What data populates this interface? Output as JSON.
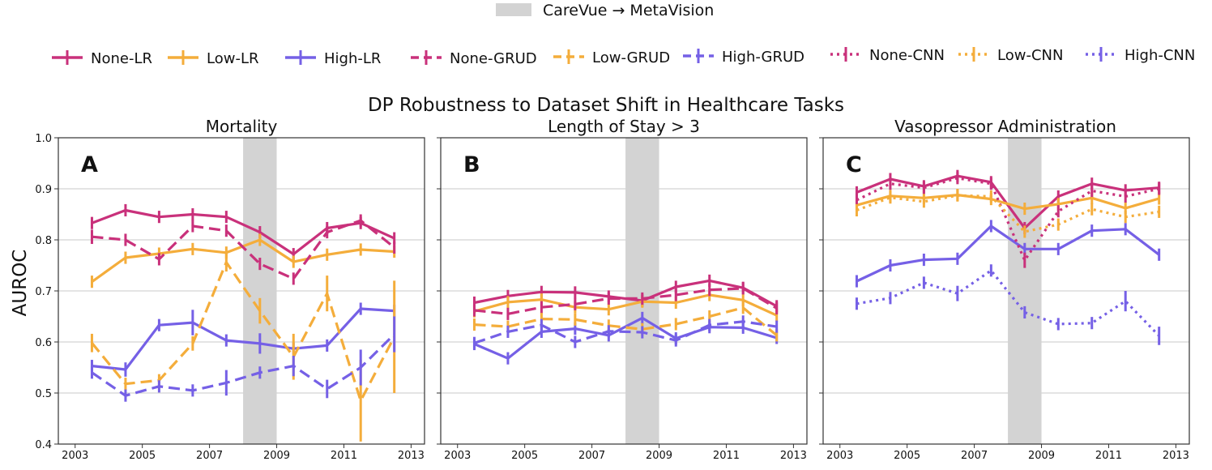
{
  "figure": {
    "shift_legend_label": "CareVue → MetaVision",
    "suptitle": "DP Robustness to Dataset Shift in Healthcare Tasks",
    "ylabel": "AUROC",
    "colors": {
      "none": "#c9317b",
      "low": "#f4ad3b",
      "high": "#7560e6",
      "shift": "#d3d3d3"
    }
  },
  "legend": [
    {
      "label": "None-LR",
      "color": "#c9317b",
      "dash": "solid"
    },
    {
      "label": "Low-LR",
      "color": "#f4ad3b",
      "dash": "solid"
    },
    {
      "label": "High-LR",
      "color": "#7560e6",
      "dash": "solid"
    },
    {
      "label": "None-GRUD",
      "color": "#c9317b",
      "dash": "dashed"
    },
    {
      "label": "Low-GRUD",
      "color": "#f4ad3b",
      "dash": "dashed"
    },
    {
      "label": "High-GRUD",
      "color": "#7560e6",
      "dash": "dashed"
    },
    {
      "label": "None-CNN",
      "color": "#c9317b",
      "dash": "dotted"
    },
    {
      "label": "Low-CNN",
      "color": "#f4ad3b",
      "dash": "dotted"
    },
    {
      "label": "High-CNN",
      "color": "#7560e6",
      "dash": "dotted"
    }
  ],
  "chart_data": [
    {
      "type": "line",
      "title": "Mortality",
      "panel_letter": "A",
      "ylabel": "AUROC",
      "xlim": [
        2002.5,
        2013.4
      ],
      "ylim": [
        0.4,
        1.0
      ],
      "xticks": [
        2003,
        2005,
        2007,
        2009,
        2011,
        2013
      ],
      "yticks": [
        0.4,
        0.5,
        0.6,
        0.7,
        0.8,
        0.9,
        1.0
      ],
      "shift_band": [
        2008,
        2009
      ],
      "grid": "y",
      "x": [
        2003.5,
        2004.5,
        2005.5,
        2006.5,
        2007.5,
        2008.5,
        2009.5,
        2010.5,
        2011.5,
        2012.5
      ],
      "series": [
        {
          "name": "None-LR",
          "color": "#c9317b",
          "dash": "solid",
          "values": [
            0.833,
            0.858,
            0.845,
            0.85,
            0.845,
            0.815,
            0.772,
            0.823,
            0.833,
            0.803
          ],
          "err": [
            0.006,
            0.005,
            0.005,
            0.004,
            0.005,
            0.005,
            0.006,
            0.006,
            0.005,
            0.005
          ]
        },
        {
          "name": "Low-LR",
          "color": "#f4ad3b",
          "dash": "solid",
          "values": [
            0.718,
            0.765,
            0.773,
            0.782,
            0.775,
            0.8,
            0.757,
            0.771,
            0.781,
            0.777
          ],
          "err": [
            0.01,
            0.01,
            0.008,
            0.006,
            0.006,
            0.008,
            0.008,
            0.006,
            0.005,
            0.006
          ]
        },
        {
          "name": "High-LR",
          "color": "#7560e6",
          "dash": "solid",
          "values": [
            0.553,
            0.546,
            0.633,
            0.638,
            0.603,
            0.597,
            0.587,
            0.593,
            0.665,
            0.661
          ],
          "err": [
            0.012,
            0.014,
            0.01,
            0.025,
            0.008,
            0.02,
            0.008,
            0.01,
            0.005,
            0.012
          ]
        },
        {
          "name": "None-GRUD",
          "color": "#c9317b",
          "dash": "dashed",
          "values": [
            0.806,
            0.8,
            0.762,
            0.827,
            0.818,
            0.753,
            0.724,
            0.815,
            0.838,
            0.785
          ],
          "err": [
            0.014,
            0.01,
            0.012,
            0.008,
            0.008,
            0.012,
            0.01,
            0.01,
            0.008,
            0.01
          ]
        },
        {
          "name": "Low-GRUD",
          "color": "#f4ad3b",
          "dash": "dashed",
          "values": [
            0.598,
            0.518,
            0.525,
            0.597,
            0.756,
            0.661,
            0.571,
            0.695,
            0.485,
            0.61
          ],
          "err": [
            0.018,
            0.01,
            0.01,
            0.014,
            0.018,
            0.025,
            0.045,
            0.035,
            0.08,
            0.11
          ]
        },
        {
          "name": "High-GRUD",
          "color": "#7560e6",
          "dash": "dashed",
          "values": [
            0.54,
            0.495,
            0.513,
            0.505,
            0.52,
            0.54,
            0.553,
            0.508,
            0.55,
            0.615
          ],
          "err": [
            0.012,
            0.008,
            0.008,
            0.01,
            0.025,
            0.012,
            0.02,
            0.018,
            0.035,
            0.035
          ]
        }
      ]
    },
    {
      "type": "line",
      "title": "Length of Stay > 3",
      "panel_letter": "B",
      "xlim": [
        2002.5,
        2013.4
      ],
      "ylim": [
        0.4,
        1.0
      ],
      "xticks": [
        2003,
        2005,
        2007,
        2009,
        2011,
        2013
      ],
      "yticks": [
        0.4,
        0.5,
        0.6,
        0.7,
        0.8,
        0.9,
        1.0
      ],
      "shift_band": [
        2008,
        2009
      ],
      "grid": "y",
      "x": [
        2003.5,
        2004.5,
        2005.5,
        2006.5,
        2007.5,
        2008.5,
        2009.5,
        2010.5,
        2011.5,
        2012.5
      ],
      "series": [
        {
          "name": "None-LR",
          "color": "#c9317b",
          "dash": "solid",
          "values": [
            0.677,
            0.69,
            0.698,
            0.697,
            0.689,
            0.681,
            0.708,
            0.72,
            0.706,
            0.67
          ],
          "err": [
            0.003,
            0.003,
            0.003,
            0.003,
            0.003,
            0.003,
            0.003,
            0.003,
            0.003,
            0.003
          ]
        },
        {
          "name": "Low-LR",
          "color": "#f4ad3b",
          "dash": "solid",
          "values": [
            0.66,
            0.678,
            0.683,
            0.668,
            0.664,
            0.679,
            0.677,
            0.692,
            0.682,
            0.652
          ],
          "err": [
            0.004,
            0.004,
            0.004,
            0.004,
            0.004,
            0.004,
            0.004,
            0.004,
            0.004,
            0.004
          ]
        },
        {
          "name": "High-LR",
          "color": "#7560e6",
          "dash": "solid",
          "values": [
            0.596,
            0.568,
            0.62,
            0.626,
            0.613,
            0.647,
            0.607,
            0.629,
            0.628,
            0.608
          ],
          "err": [
            0.01,
            0.012,
            0.008,
            0.006,
            0.008,
            0.008,
            0.006,
            0.006,
            0.006,
            0.006
          ]
        },
        {
          "name": "None-GRUD",
          "color": "#c9317b",
          "dash": "dashed",
          "values": [
            0.662,
            0.655,
            0.668,
            0.674,
            0.685,
            0.685,
            0.692,
            0.702,
            0.705,
            0.666
          ],
          "err": [
            0.004,
            0.004,
            0.004,
            0.004,
            0.004,
            0.004,
            0.004,
            0.004,
            0.004,
            0.004
          ]
        },
        {
          "name": "Low-GRUD",
          "color": "#f4ad3b",
          "dash": "dashed",
          "values": [
            0.634,
            0.63,
            0.645,
            0.644,
            0.632,
            0.625,
            0.635,
            0.65,
            0.667,
            0.613
          ],
          "err": [
            0.006,
            0.006,
            0.006,
            0.006,
            0.006,
            0.006,
            0.006,
            0.006,
            0.006,
            0.01
          ]
        },
        {
          "name": "High-GRUD",
          "color": "#7560e6",
          "dash": "dashed",
          "values": [
            0.598,
            0.62,
            0.633,
            0.6,
            0.621,
            0.619,
            0.603,
            0.633,
            0.64,
            0.63
          ],
          "err": [
            0.01,
            0.01,
            0.008,
            0.01,
            0.01,
            0.008,
            0.01,
            0.008,
            0.008,
            0.008
          ]
        }
      ]
    },
    {
      "type": "line",
      "title": "Vasopressor Administration",
      "panel_letter": "C",
      "xlim": [
        2002.5,
        2013.4
      ],
      "ylim": [
        0.4,
        1.0
      ],
      "xticks": [
        2003,
        2005,
        2007,
        2009,
        2011,
        2013
      ],
      "yticks": [
        0.4,
        0.5,
        0.6,
        0.7,
        0.8,
        0.9,
        1.0
      ],
      "shift_band": [
        2008,
        2009
      ],
      "grid": "y",
      "x": [
        2003.5,
        2004.5,
        2005.5,
        2006.5,
        2007.5,
        2008.5,
        2009.5,
        2010.5,
        2011.5,
        2012.5
      ],
      "series": [
        {
          "name": "None-LR",
          "color": "#c9317b",
          "dash": "solid",
          "values": [
            0.893,
            0.919,
            0.905,
            0.925,
            0.913,
            0.823,
            0.885,
            0.91,
            0.897,
            0.902
          ],
          "err": [
            0.004,
            0.004,
            0.004,
            0.004,
            0.004,
            0.006,
            0.004,
            0.004,
            0.004,
            0.004
          ]
        },
        {
          "name": "Low-LR",
          "color": "#f4ad3b",
          "dash": "solid",
          "values": [
            0.868,
            0.886,
            0.882,
            0.888,
            0.88,
            0.861,
            0.87,
            0.882,
            0.862,
            0.881
          ],
          "err": [
            0.005,
            0.005,
            0.005,
            0.005,
            0.005,
            0.005,
            0.005,
            0.005,
            0.005,
            0.005
          ]
        },
        {
          "name": "High-LR",
          "color": "#7560e6",
          "dash": "solid",
          "values": [
            0.719,
            0.75,
            0.761,
            0.763,
            0.827,
            0.782,
            0.782,
            0.818,
            0.821,
            0.771
          ],
          "err": [
            0.004,
            0.004,
            0.004,
            0.004,
            0.004,
            0.004,
            0.004,
            0.004,
            0.004,
            0.004
          ]
        },
        {
          "name": "None-CNN",
          "color": "#c9317b",
          "dash": "dotted",
          "values": [
            0.878,
            0.91,
            0.902,
            0.921,
            0.91,
            0.76,
            0.856,
            0.896,
            0.885,
            0.9
          ],
          "err": [
            0.006,
            0.006,
            0.006,
            0.006,
            0.006,
            0.015,
            0.008,
            0.006,
            0.006,
            0.006
          ]
        },
        {
          "name": "Low-CNN",
          "color": "#f4ad3b",
          "dash": "dotted",
          "values": [
            0.858,
            0.883,
            0.875,
            0.887,
            0.885,
            0.816,
            0.83,
            0.86,
            0.845,
            0.855
          ],
          "err": [
            0.006,
            0.006,
            0.006,
            0.006,
            0.006,
            0.008,
            0.008,
            0.006,
            0.006,
            0.006
          ]
        },
        {
          "name": "High-CNN",
          "color": "#7560e6",
          "dash": "dotted",
          "values": [
            0.675,
            0.686,
            0.716,
            0.695,
            0.74,
            0.658,
            0.635,
            0.637,
            0.68,
            0.612
          ],
          "err": [
            0.01,
            0.012,
            0.012,
            0.015,
            0.012,
            0.012,
            0.012,
            0.012,
            0.02,
            0.018
          ]
        }
      ]
    }
  ]
}
